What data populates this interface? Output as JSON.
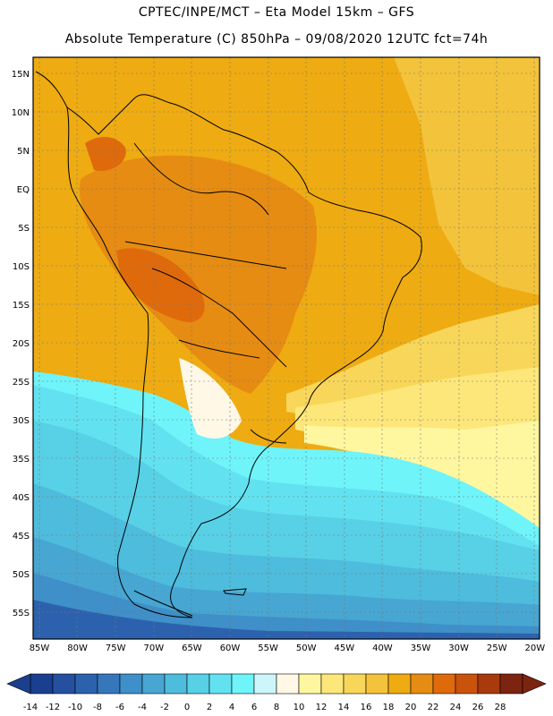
{
  "title_line1": "CPTEC/INPE/MCT –  Eta Model 15km – GFS",
  "title_line2": "Absolute Temperature (C) 850hPa – 09/08/2020 12UTC fct=74h",
  "lat_labels": [
    "15N",
    "10N",
    "5N",
    "EQ",
    "5S",
    "10S",
    "15S",
    "20S",
    "25S",
    "30S",
    "35S",
    "40S",
    "45S",
    "50S",
    "55S"
  ],
  "lon_labels": [
    "85W",
    "80W",
    "75W",
    "70W",
    "65W",
    "60W",
    "55W",
    "50W",
    "45W",
    "40W",
    "35W",
    "30W",
    "25W",
    "20W"
  ],
  "colorbar": {
    "labels": [
      "-14",
      "-12",
      "-10",
      "-8",
      "-6",
      "-4",
      "-2",
      "0",
      "2",
      "4",
      "6",
      "8",
      "10",
      "12",
      "14",
      "16",
      "18",
      "20",
      "22",
      "24",
      "26",
      "28"
    ],
    "colors": [
      "#1b3f8f",
      "#24509f",
      "#2c62ad",
      "#3677bc",
      "#3f8fc8",
      "#47a6d2",
      "#4ebcdc",
      "#58d0e6",
      "#62e2f0",
      "#6ff4fa",
      "#cdf6fb",
      "#fff8e6",
      "#fff7a0",
      "#fde77a",
      "#f8d659",
      "#f3c33b",
      "#eeab12",
      "#e68c12",
      "#df6a0c",
      "#c9520c",
      "#a83a0b",
      "#7c2410"
    ]
  }
}
